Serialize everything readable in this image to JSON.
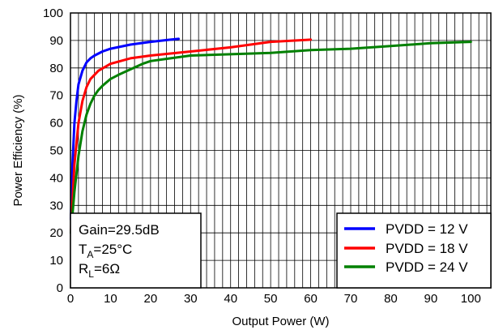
{
  "chart_data": {
    "type": "line",
    "title": "",
    "xlabel": "Output Power (W)",
    "ylabel": "Power Efficiency (%)",
    "xlim": [
      0,
      105
    ],
    "ylim": [
      0,
      100
    ],
    "x_ticks": [
      0,
      10,
      20,
      30,
      40,
      50,
      60,
      70,
      80,
      90,
      100
    ],
    "y_ticks": [
      0,
      10,
      20,
      30,
      40,
      50,
      60,
      70,
      80,
      90,
      100
    ],
    "grid": "vertical and horizontal (vertical every 2 units, horizontal every 10 units)",
    "legend_position": "bottom-right",
    "series": [
      {
        "name": "PVDD = 12 V",
        "color": "#0000ff",
        "points": [
          [
            0.1,
            25
          ],
          [
            0.5,
            45
          ],
          [
            1,
            60
          ],
          [
            1.5,
            68
          ],
          [
            2,
            74
          ],
          [
            3,
            79
          ],
          [
            4,
            82
          ],
          [
            5,
            83.5
          ],
          [
            6,
            84.5
          ],
          [
            8,
            86
          ],
          [
            10,
            87
          ],
          [
            15,
            88.5
          ],
          [
            20,
            89.5
          ],
          [
            25,
            90.3
          ],
          [
            27,
            90.6
          ]
        ]
      },
      {
        "name": "PVDD = 18 V",
        "color": "#ff0000",
        "points": [
          [
            0.1,
            20
          ],
          [
            1,
            45
          ],
          [
            2,
            60
          ],
          [
            3,
            68
          ],
          [
            4,
            73
          ],
          [
            5,
            76
          ],
          [
            7,
            79
          ],
          [
            10,
            81.5
          ],
          [
            15,
            83.5
          ],
          [
            20,
            84.5
          ],
          [
            30,
            86
          ],
          [
            40,
            87.5
          ],
          [
            50,
            89.5
          ],
          [
            60,
            90.3
          ]
        ]
      },
      {
        "name": "PVDD = 24 V",
        "color": "#008000",
        "points": [
          [
            0.1,
            20
          ],
          [
            1,
            35
          ],
          [
            2,
            48
          ],
          [
            3,
            57
          ],
          [
            4,
            63
          ],
          [
            5,
            67
          ],
          [
            6,
            70
          ],
          [
            7,
            72
          ],
          [
            8,
            73.5
          ],
          [
            10,
            76
          ],
          [
            12,
            77.5
          ],
          [
            15,
            79.5
          ],
          [
            18,
            81.5
          ],
          [
            20,
            82.5
          ],
          [
            25,
            83.5
          ],
          [
            30,
            84.5
          ],
          [
            40,
            85
          ],
          [
            50,
            85.5
          ],
          [
            60,
            86.5
          ],
          [
            70,
            87
          ],
          [
            80,
            88
          ],
          [
            90,
            89
          ],
          [
            100,
            89.5
          ]
        ]
      }
    ],
    "annotation": {
      "gain": "Gain=29.5dB",
      "ta_main": "T",
      "ta_sub": "A",
      "ta_rest": "=25°C",
      "rl_main": "R",
      "rl_sub": "L",
      "rl_rest": "=6Ω"
    }
  }
}
